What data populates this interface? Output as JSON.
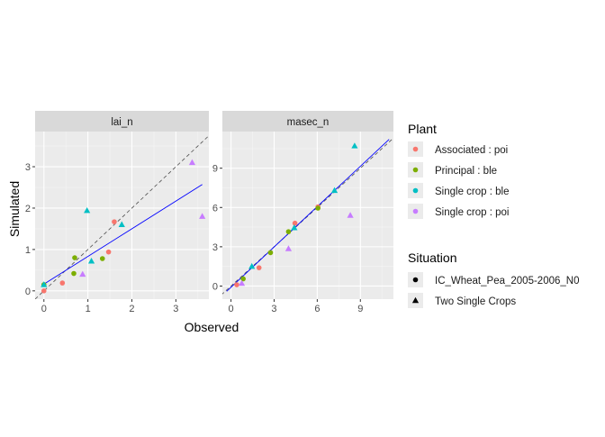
{
  "chart_data": {
    "type": "scatter",
    "xlabel": "Observed",
    "ylabel": "Simulated",
    "legend_placement": "right",
    "legend": {
      "color_title": "Plant",
      "color_items": [
        {
          "label": "Associated : poi",
          "color": "#F8766D"
        },
        {
          "label": "Principal : ble",
          "color": "#7CAE00"
        },
        {
          "label": "Single crop : ble",
          "color": "#00BFC4"
        },
        {
          "label": "Single crop : poi",
          "color": "#C77CFF"
        }
      ],
      "shape_title": "Situation",
      "shape_items": [
        {
          "label": "IC_Wheat_Pea_2005-2006_N0",
          "shape": "circle"
        },
        {
          "label": "Two Single Crops",
          "shape": "triangle"
        }
      ]
    },
    "panels": [
      {
        "title": "lai_n",
        "xlim": [
          -0.2,
          3.75
        ],
        "ylim": [
          -0.2,
          3.85
        ],
        "xticks": [
          0,
          1,
          2,
          3
        ],
        "yticks": [
          0,
          1,
          2,
          3
        ],
        "identity_line": true,
        "regression_line": [
          [
            -0.05,
            0.13
          ],
          [
            3.6,
            2.57
          ]
        ],
        "points": [
          {
            "x": 0.0,
            "y": 0.0,
            "plant": "Associated : poi",
            "situation": "IC_Wheat_Pea_2005-2006_N0"
          },
          {
            "x": 0.42,
            "y": 0.19,
            "plant": "Associated : poi",
            "situation": "IC_Wheat_Pea_2005-2006_N0"
          },
          {
            "x": 1.47,
            "y": 0.94,
            "plant": "Associated : poi",
            "situation": "IC_Wheat_Pea_2005-2006_N0"
          },
          {
            "x": 1.6,
            "y": 1.67,
            "plant": "Associated : poi",
            "situation": "IC_Wheat_Pea_2005-2006_N0"
          },
          {
            "x": 0.0,
            "y": 0.15,
            "plant": "Principal : ble",
            "situation": "IC_Wheat_Pea_2005-2006_N0"
          },
          {
            "x": 0.68,
            "y": 0.42,
            "plant": "Principal : ble",
            "situation": "IC_Wheat_Pea_2005-2006_N0"
          },
          {
            "x": 0.7,
            "y": 0.8,
            "plant": "Principal : ble",
            "situation": "IC_Wheat_Pea_2005-2006_N0"
          },
          {
            "x": 1.33,
            "y": 0.78,
            "plant": "Principal : ble",
            "situation": "IC_Wheat_Pea_2005-2006_N0"
          },
          {
            "x": 0.0,
            "y": 0.15,
            "plant": "Single crop : ble",
            "situation": "Two Single Crops"
          },
          {
            "x": 0.98,
            "y": 1.94,
            "plant": "Single crop : ble",
            "situation": "Two Single Crops"
          },
          {
            "x": 1.08,
            "y": 0.72,
            "plant": "Single crop : ble",
            "situation": "Two Single Crops"
          },
          {
            "x": 1.77,
            "y": 1.6,
            "plant": "Single crop : ble",
            "situation": "Two Single Crops"
          },
          {
            "x": 0.88,
            "y": 0.4,
            "plant": "Single crop : poi",
            "situation": "Two Single Crops"
          },
          {
            "x": 3.37,
            "y": 3.1,
            "plant": "Single crop : poi",
            "situation": "Two Single Crops"
          },
          {
            "x": 3.6,
            "y": 1.8,
            "plant": "Single crop : poi",
            "situation": "Two Single Crops"
          }
        ]
      },
      {
        "title": "masec_n",
        "xlim": [
          -0.6,
          11.3
        ],
        "ylim": [
          -1.0,
          11.8
        ],
        "xticks": [
          0,
          3,
          6,
          9
        ],
        "yticks": [
          0,
          3,
          6,
          9
        ],
        "identity_line": true,
        "regression_line": [
          [
            -0.3,
            -0.4
          ],
          [
            11.0,
            11.2
          ]
        ],
        "points": [
          {
            "x": 0.4,
            "y": 0.1,
            "plant": "Associated : poi",
            "situation": "IC_Wheat_Pea_2005-2006_N0"
          },
          {
            "x": 1.95,
            "y": 1.4,
            "plant": "Associated : poi",
            "situation": "IC_Wheat_Pea_2005-2006_N0"
          },
          {
            "x": 4.45,
            "y": 4.8,
            "plant": "Associated : poi",
            "situation": "IC_Wheat_Pea_2005-2006_N0"
          },
          {
            "x": 6.05,
            "y": 6.05,
            "plant": "Associated : poi",
            "situation": "IC_Wheat_Pea_2005-2006_N0"
          },
          {
            "x": 0.85,
            "y": 0.55,
            "plant": "Principal : ble",
            "situation": "IC_Wheat_Pea_2005-2006_N0"
          },
          {
            "x": 2.75,
            "y": 2.55,
            "plant": "Principal : ble",
            "situation": "IC_Wheat_Pea_2005-2006_N0"
          },
          {
            "x": 4.0,
            "y": 4.15,
            "plant": "Principal : ble",
            "situation": "IC_Wheat_Pea_2005-2006_N0"
          },
          {
            "x": 6.05,
            "y": 5.95,
            "plant": "Principal : ble",
            "situation": "IC_Wheat_Pea_2005-2006_N0"
          },
          {
            "x": 1.45,
            "y": 1.5,
            "plant": "Single crop : ble",
            "situation": "Two Single Crops"
          },
          {
            "x": 4.4,
            "y": 4.45,
            "plant": "Single crop : ble",
            "situation": "Two Single Crops"
          },
          {
            "x": 7.2,
            "y": 7.3,
            "plant": "Single crop : ble",
            "situation": "Two Single Crops"
          },
          {
            "x": 8.6,
            "y": 10.7,
            "plant": "Single crop : ble",
            "situation": "Two Single Crops"
          },
          {
            "x": 0.75,
            "y": 0.2,
            "plant": "Single crop : poi",
            "situation": "Two Single Crops"
          },
          {
            "x": 4.0,
            "y": 2.85,
            "plant": "Single crop : poi",
            "situation": "Two Single Crops"
          },
          {
            "x": 8.3,
            "y": 5.4,
            "plant": "Single crop : poi",
            "situation": "Two Single Crops"
          }
        ]
      }
    ]
  }
}
